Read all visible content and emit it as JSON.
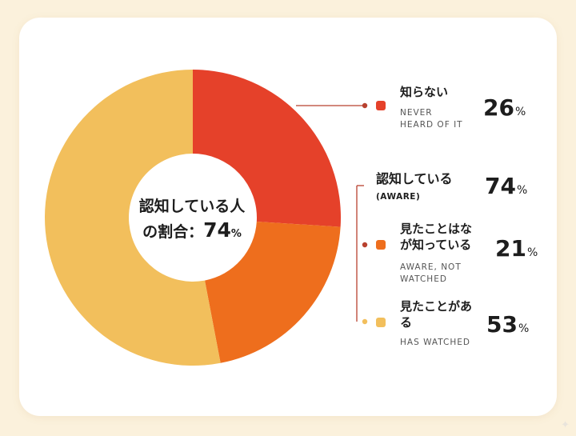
{
  "colors": {
    "background": "#fbf1dc",
    "card": "#ffffff",
    "leader": "#b8412f"
  },
  "center": {
    "line1": "認知している人",
    "line2": "の割合：",
    "value": "74",
    "unit": "%"
  },
  "legend": {
    "never": {
      "title": "知らない",
      "sub1": "NEVER",
      "sub2": "HEARD OF IT",
      "value": "26",
      "unit": "%",
      "color": "#e5412a"
    },
    "aware": {
      "title": "認知している",
      "sub": "(AWARE)",
      "value": "74",
      "unit": "%"
    },
    "not_watched": {
      "title1": "見たことはな",
      "title2": "が知っている",
      "sub1": "AWARE, NOT",
      "sub2": "WATCHED",
      "value": "21",
      "unit": "%",
      "color": "#ee6e1d"
    },
    "watched": {
      "title1": "見たことがあ",
      "title2": "る",
      "sub": "HAS WATCHED",
      "value": "53",
      "unit": "%",
      "color": "#f2bf5c"
    }
  },
  "chart_data": {
    "type": "pie",
    "labels": [
      "知らない",
      "見たことはなが知っている",
      "見たことがある"
    ],
    "values": [
      26,
      21,
      53
    ],
    "colors": [
      "#e5412a",
      "#ee6e1d",
      "#f2bf5c"
    ]
  }
}
